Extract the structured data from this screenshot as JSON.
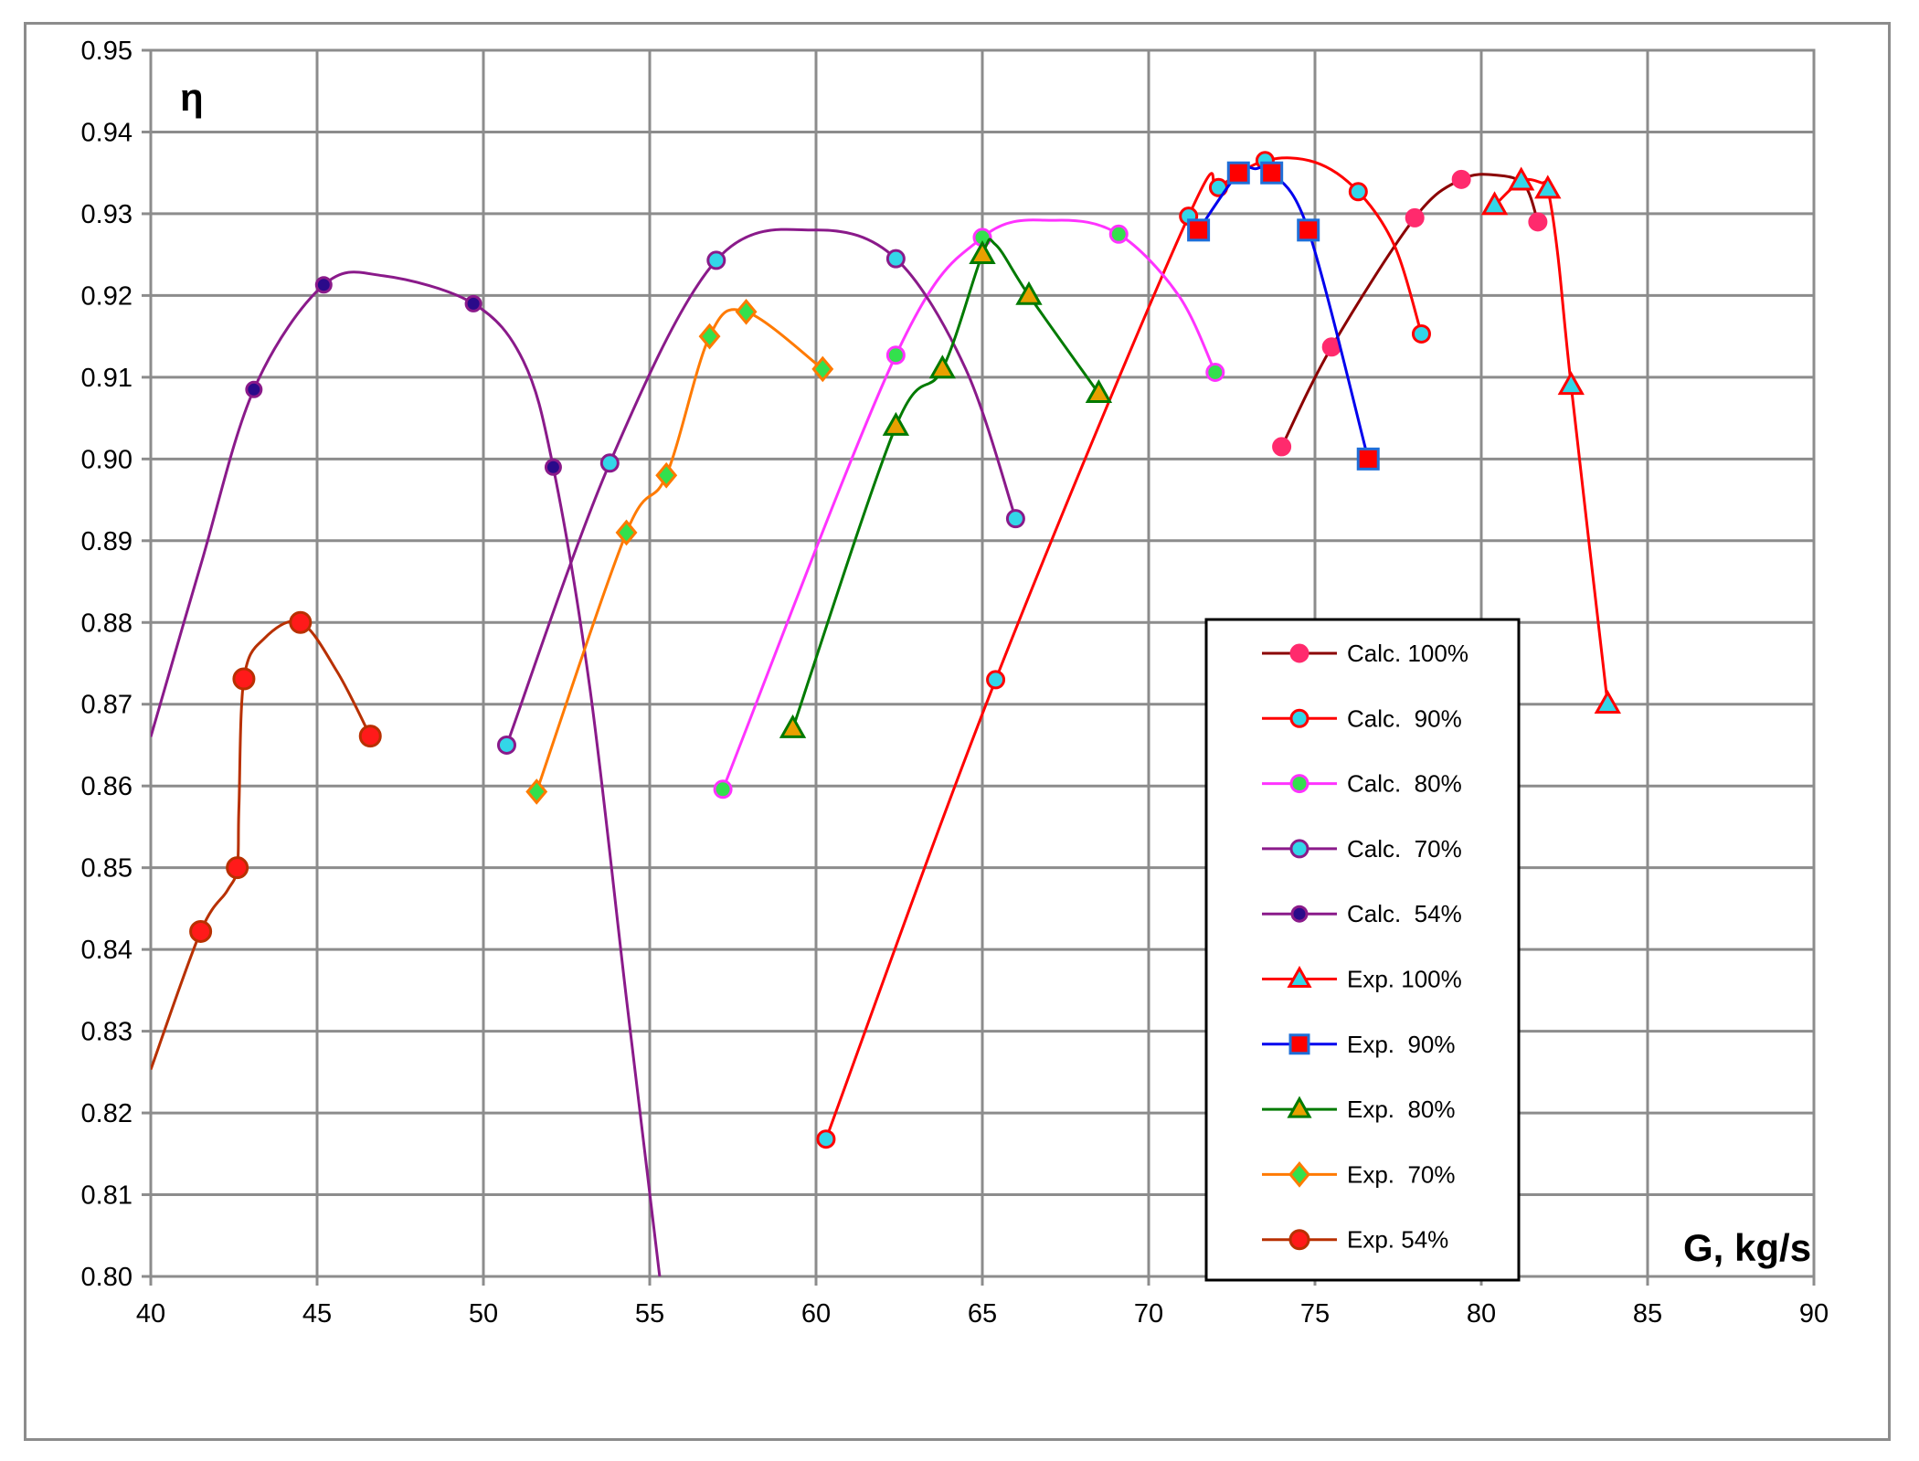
{
  "chart_data": {
    "type": "line",
    "ylabel": "η",
    "xlabel": "G, kg/s",
    "xlim": [
      40,
      90
    ],
    "ylim": [
      0.8,
      0.95
    ],
    "x_ticks": [
      "40",
      "45",
      "50",
      "55",
      "60",
      "65",
      "70",
      "75",
      "80",
      "85",
      "90"
    ],
    "y_ticks": [
      "0.80",
      "0.81",
      "0.82",
      "0.83",
      "0.84",
      "0.85",
      "0.86",
      "0.87",
      "0.88",
      "0.89",
      "0.90",
      "0.91",
      "0.92",
      "0.93",
      "0.94",
      "0.95"
    ],
    "grid": true,
    "legend_position": "lower-right",
    "series": [
      {
        "name": "Calc. 100%",
        "line_color": "#8b0000",
        "marker": "circle",
        "marker_fill": "#ff2a6d",
        "marker_edge": "#ff2a6d",
        "marker_size": 9,
        "points": [
          [
            74.0,
            0.9015
          ],
          [
            75.5,
            0.9137
          ],
          [
            78.0,
            0.9295
          ],
          [
            79.4,
            0.9342
          ],
          [
            81.7,
            0.929
          ]
        ],
        "curve": [
          [
            74.0,
            0.9015
          ],
          [
            75.5,
            0.9137
          ],
          [
            78.0,
            0.9295
          ],
          [
            79.4,
            0.9342
          ],
          [
            80.5,
            0.9347
          ],
          [
            81.3,
            0.9335
          ],
          [
            81.7,
            0.929
          ]
        ]
      },
      {
        "name": "Calc.  90%",
        "line_color": "#ff0000",
        "marker": "circle",
        "marker_fill": "#33d6e8",
        "marker_edge": "#ff0000",
        "marker_size": 9,
        "points": [
          [
            60.3,
            0.8168
          ],
          [
            65.4,
            0.873
          ],
          [
            71.2,
            0.9297
          ],
          [
            72.1,
            0.9332
          ],
          [
            73.5,
            0.9365
          ],
          [
            76.3,
            0.9327
          ],
          [
            78.2,
            0.9153
          ]
        ],
        "curve": [
          [
            60.3,
            0.8168
          ],
          [
            65.4,
            0.873
          ],
          [
            71.2,
            0.9297
          ],
          [
            72.1,
            0.9332
          ],
          [
            73.5,
            0.9365
          ],
          [
            75.0,
            0.9363
          ],
          [
            76.3,
            0.9327
          ],
          [
            77.4,
            0.926
          ],
          [
            78.2,
            0.9153
          ]
        ]
      },
      {
        "name": "Calc.  80%",
        "line_color": "#ff33ff",
        "marker": "circle",
        "marker_fill": "#33e04d",
        "marker_edge": "#ff33ff",
        "marker_size": 9,
        "points": [
          [
            57.2,
            0.8596
          ],
          [
            62.4,
            0.9127
          ],
          [
            65.0,
            0.9271
          ],
          [
            69.1,
            0.9275
          ],
          [
            72.0,
            0.9106
          ]
        ],
        "curve": [
          [
            57.2,
            0.8596
          ],
          [
            62.4,
            0.9127
          ],
          [
            65.0,
            0.9271
          ],
          [
            67.2,
            0.9292
          ],
          [
            69.1,
            0.9275
          ],
          [
            70.9,
            0.92
          ],
          [
            72.0,
            0.9106
          ]
        ]
      },
      {
        "name": "Calc.  70%",
        "line_color": "#8a1a8a",
        "marker": "circle",
        "marker_fill": "#33d6e8",
        "marker_edge": "#8a1a8a",
        "marker_size": 9,
        "points": [
          [
            50.7,
            0.865
          ],
          [
            53.8,
            0.8995
          ],
          [
            57.0,
            0.9243
          ],
          [
            62.4,
            0.9245
          ],
          [
            66.0,
            0.8927
          ]
        ],
        "curve": [
          [
            50.7,
            0.865
          ],
          [
            53.8,
            0.8995
          ],
          [
            57.0,
            0.9243
          ],
          [
            60.0,
            0.928
          ],
          [
            62.4,
            0.9245
          ],
          [
            64.5,
            0.911
          ],
          [
            66.0,
            0.8927
          ]
        ]
      },
      {
        "name": "Calc.  54%",
        "line_color": "#8a1a8a",
        "marker": "circle",
        "marker_fill": "#2a0a8a",
        "marker_edge": "#8a1a8a",
        "marker_size": 8,
        "points": [
          [
            43.1,
            0.9085
          ],
          [
            45.2,
            0.9213
          ],
          [
            49.7,
            0.919
          ],
          [
            52.1,
            0.899
          ]
        ],
        "curve": [
          [
            40.0,
            0.866
          ],
          [
            41.5,
            0.887
          ],
          [
            43.1,
            0.9085
          ],
          [
            45.2,
            0.9213
          ],
          [
            47.0,
            0.9224
          ],
          [
            49.7,
            0.919
          ],
          [
            51.2,
            0.912
          ],
          [
            52.1,
            0.899
          ],
          [
            53.2,
            0.872
          ],
          [
            54.3,
            0.834
          ],
          [
            55.3,
            0.8
          ]
        ]
      },
      {
        "name": "Exp. 100%",
        "line_color": "#ff0000",
        "marker": "triangle",
        "marker_fill": "#33d6e8",
        "marker_edge": "#ff0000",
        "marker_size": 11,
        "points": [
          [
            80.4,
            0.931
          ],
          [
            81.2,
            0.934
          ],
          [
            82.0,
            0.933
          ],
          [
            82.7,
            0.909
          ],
          [
            83.8,
            0.87
          ]
        ],
        "curve": [
          [
            80.4,
            0.931
          ],
          [
            81.2,
            0.934
          ],
          [
            81.8,
            0.9338
          ],
          [
            82.0,
            0.933
          ],
          [
            82.3,
            0.925
          ],
          [
            82.7,
            0.909
          ],
          [
            83.8,
            0.87
          ]
        ]
      },
      {
        "name": "Exp.  90%",
        "line_color": "#0000ee",
        "marker": "square",
        "marker_fill": "#ff0000",
        "marker_edge": "#1e6fd9",
        "marker_size": 11,
        "points": [
          [
            71.5,
            0.928
          ],
          [
            72.7,
            0.935
          ],
          [
            73.7,
            0.935
          ],
          [
            74.8,
            0.928
          ],
          [
            76.6,
            0.9
          ]
        ],
        "curve": [
          [
            71.5,
            0.928
          ],
          [
            72.7,
            0.935
          ],
          [
            73.2,
            0.9355
          ],
          [
            73.7,
            0.935
          ],
          [
            74.8,
            0.928
          ],
          [
            76.6,
            0.9
          ]
        ]
      },
      {
        "name": "Exp.  80%",
        "line_color": "#007a00",
        "marker": "triangle",
        "marker_fill": "#e8a000",
        "marker_edge": "#007a00",
        "marker_size": 11,
        "points": [
          [
            59.3,
            0.867
          ],
          [
            62.4,
            0.904
          ],
          [
            63.8,
            0.911
          ],
          [
            65.0,
            0.925
          ],
          [
            66.4,
            0.92
          ],
          [
            68.5,
            0.908
          ]
        ],
        "curve": [
          [
            59.3,
            0.867
          ],
          [
            62.4,
            0.904
          ],
          [
            63.8,
            0.911
          ],
          [
            65.0,
            0.925
          ],
          [
            65.4,
            0.9262
          ],
          [
            66.4,
            0.92
          ],
          [
            68.5,
            0.908
          ]
        ]
      },
      {
        "name": "Exp.  70%",
        "line_color": "#ff7a00",
        "marker": "diamond",
        "marker_fill": "#33e04d",
        "marker_edge": "#ff7a00",
        "marker_size": 10,
        "points": [
          [
            51.6,
            0.8593
          ],
          [
            54.3,
            0.891
          ],
          [
            55.5,
            0.898
          ],
          [
            56.8,
            0.915
          ],
          [
            57.9,
            0.918
          ],
          [
            60.2,
            0.911
          ]
        ],
        "curve": [
          [
            51.6,
            0.8593
          ],
          [
            54.3,
            0.891
          ],
          [
            55.5,
            0.898
          ],
          [
            56.8,
            0.915
          ],
          [
            57.9,
            0.918
          ],
          [
            60.2,
            0.911
          ]
        ]
      },
      {
        "name": "Exp. 54%",
        "line_color": "#b83000",
        "marker": "circle",
        "marker_fill": "#ff1a1a",
        "marker_edge": "#b83000",
        "marker_size": 11,
        "points": [
          [
            41.5,
            0.8422
          ],
          [
            42.6,
            0.85
          ],
          [
            42.8,
            0.8731
          ],
          [
            44.5,
            0.88
          ],
          [
            46.6,
            0.8661
          ]
        ],
        "curve": [
          [
            40.0,
            0.8253
          ],
          [
            41.5,
            0.8422
          ],
          [
            42.3,
            0.8472
          ],
          [
            42.6,
            0.85
          ],
          [
            42.65,
            0.8575
          ],
          [
            42.8,
            0.8731
          ],
          [
            43.4,
            0.878
          ],
          [
            44.5,
            0.88
          ],
          [
            45.6,
            0.874
          ],
          [
            46.6,
            0.8661
          ]
        ]
      }
    ]
  }
}
